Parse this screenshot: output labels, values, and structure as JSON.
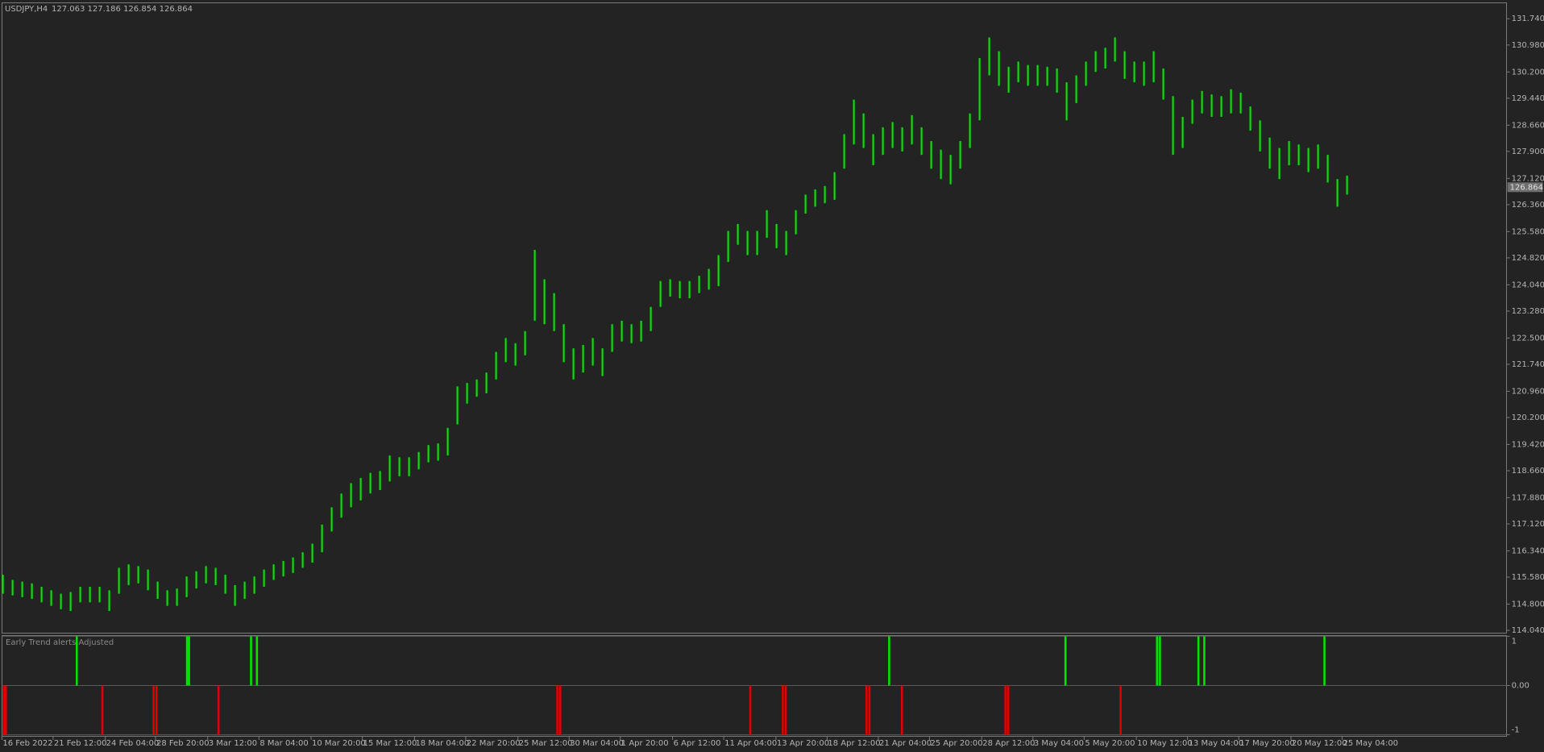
{
  "chart_data": [
    {
      "type": "rangebar",
      "title": "USDJPY,H4",
      "subtitle": "127.063 127.186 126.854 126.864",
      "color": "#00e400",
      "high": [
        115.65,
        115.5,
        115.45,
        115.4,
        115.3,
        115.2,
        115.1,
        115.15,
        115.3,
        115.3,
        115.3,
        115.2,
        115.85,
        115.95,
        115.9,
        115.8,
        115.45,
        115.2,
        115.25,
        115.6,
        115.75,
        115.9,
        115.85,
        115.65,
        115.35,
        115.45,
        115.6,
        115.8,
        115.95,
        116.05,
        116.15,
        116.3,
        116.55,
        117.1,
        117.6,
        118.0,
        118.3,
        118.45,
        118.6,
        118.65,
        119.1,
        119.05,
        119.05,
        119.2,
        119.4,
        119.45,
        119.9,
        121.1,
        121.2,
        121.3,
        121.5,
        122.1,
        122.5,
        122.35,
        122.7,
        125.05,
        124.2,
        123.8,
        122.9,
        122.2,
        122.3,
        122.5,
        122.2,
        122.9,
        123.0,
        122.9,
        123.0,
        123.4,
        124.15,
        124.2,
        124.15,
        124.15,
        124.3,
        124.5,
        124.9,
        125.6,
        125.8,
        125.6,
        125.6,
        126.2,
        125.8,
        125.6,
        126.2,
        126.65,
        126.8,
        126.9,
        127.3,
        128.4,
        129.4,
        129.0,
        128.4,
        128.6,
        128.75,
        128.6,
        128.95,
        128.6,
        128.2,
        127.95,
        127.8,
        128.2,
        129.0,
        130.6,
        131.2,
        130.8,
        130.35,
        130.5,
        130.4,
        130.4,
        130.35,
        130.3,
        129.9,
        130.1,
        130.5,
        130.8,
        130.9,
        131.2,
        130.8,
        130.5,
        130.5,
        130.8,
        130.3,
        129.5,
        128.9,
        129.4,
        129.65,
        129.55,
        129.5,
        129.7,
        129.6,
        129.2,
        128.8,
        128.3,
        128.0,
        128.2,
        128.1,
        128.0,
        128.1,
        127.8,
        127.1,
        127.2
      ],
      "low": [
        115.1,
        115.05,
        115.0,
        114.95,
        114.85,
        114.75,
        114.65,
        114.6,
        114.85,
        114.85,
        114.85,
        114.6,
        115.1,
        115.35,
        115.4,
        115.2,
        114.95,
        114.75,
        114.75,
        115.0,
        115.25,
        115.4,
        115.35,
        115.1,
        114.75,
        114.95,
        115.1,
        115.3,
        115.5,
        115.6,
        115.7,
        115.85,
        116.0,
        116.3,
        116.9,
        117.3,
        117.6,
        117.8,
        118.0,
        118.1,
        118.35,
        118.5,
        118.5,
        118.7,
        118.9,
        118.95,
        119.1,
        120.0,
        120.6,
        120.8,
        120.9,
        121.3,
        121.8,
        121.7,
        122.0,
        123.0,
        122.9,
        122.7,
        121.8,
        121.3,
        121.5,
        121.7,
        121.4,
        122.1,
        122.4,
        122.35,
        122.4,
        122.7,
        123.4,
        123.7,
        123.65,
        123.65,
        123.8,
        123.9,
        124.0,
        124.7,
        125.2,
        124.9,
        124.9,
        125.4,
        125.1,
        124.9,
        125.5,
        126.1,
        126.3,
        126.4,
        126.5,
        127.4,
        128.1,
        128.0,
        127.5,
        127.8,
        128.0,
        127.9,
        128.1,
        127.8,
        127.4,
        127.1,
        126.95,
        127.4,
        128.0,
        128.8,
        130.1,
        129.8,
        129.6,
        129.9,
        129.8,
        129.8,
        129.8,
        129.6,
        128.8,
        129.3,
        129.8,
        130.2,
        130.3,
        130.5,
        130.0,
        129.9,
        129.8,
        129.9,
        129.4,
        127.8,
        128.0,
        128.7,
        129.0,
        128.9,
        128.9,
        129.0,
        129.0,
        128.5,
        127.9,
        127.4,
        127.1,
        127.5,
        127.5,
        127.3,
        127.4,
        127.0,
        126.3,
        126.65
      ],
      "last_price": {
        "value": 126.864,
        "label": "126.864"
      },
      "xlim": [
        -0.1,
        155.5
      ],
      "xticks": [
        {
          "value": -0.1,
          "label": "16 Feb 2022"
        },
        {
          "value": 5.19,
          "label": "21 Feb 12:00"
        },
        {
          "value": 10.59,
          "label": "24 Feb 04:00"
        },
        {
          "value": 15.78,
          "label": "28 Feb 20:00"
        },
        {
          "value": 21.18,
          "label": "3 Mar 12:00"
        },
        {
          "value": 26.48,
          "label": "8 Mar 04:00"
        },
        {
          "value": 31.87,
          "label": "10 Mar 20:00"
        },
        {
          "value": 37.17,
          "label": "15 Mar 12:00"
        },
        {
          "value": 42.57,
          "label": "18 Mar 04:00"
        },
        {
          "value": 47.86,
          "label": "22 Mar 20:00"
        },
        {
          "value": 53.26,
          "label": "25 Mar 12:00"
        },
        {
          "value": 58.55,
          "label": "30 Mar 04:00"
        },
        {
          "value": 63.85,
          "label": "1 Apr 20:00"
        },
        {
          "value": 69.25,
          "label": "6 Apr 12:00"
        },
        {
          "value": 74.54,
          "label": "11 Apr 04:00"
        },
        {
          "value": 79.94,
          "label": "13 Apr 20:00"
        },
        {
          "value": 85.23,
          "label": "18 Apr 12:00"
        },
        {
          "value": 90.53,
          "label": "21 Apr 04:00"
        },
        {
          "value": 95.82,
          "label": "25 Apr 20:00"
        },
        {
          "value": 101.22,
          "label": "28 Apr 12:00"
        },
        {
          "value": 106.52,
          "label": "3 May 04:00"
        },
        {
          "value": 111.81,
          "label": "5 May 20:00"
        },
        {
          "value": 117.21,
          "label": "10 May 12:00"
        },
        {
          "value": 122.5,
          "label": "13 May 04:00"
        },
        {
          "value": 127.8,
          "label": "17 May 20:00"
        },
        {
          "value": 133.2,
          "label": "20 May 12:00"
        },
        {
          "value": 138.49,
          "label": "25 May 04:00"
        }
      ],
      "ylim": [
        113.955,
        132.196
      ],
      "yticks": [
        {
          "value": 114.04,
          "label": "114.040"
        },
        {
          "value": 114.8,
          "label": "114.800"
        },
        {
          "value": 115.58,
          "label": "115.580"
        },
        {
          "value": 116.34,
          "label": "116.340"
        },
        {
          "value": 117.12,
          "label": "117.120"
        },
        {
          "value": 117.88,
          "label": "117.880"
        },
        {
          "value": 118.66,
          "label": "118.660"
        },
        {
          "value": 119.42,
          "label": "119.420"
        },
        {
          "value": 120.2,
          "label": "120.200"
        },
        {
          "value": 120.96,
          "label": "120.960"
        },
        {
          "value": 121.74,
          "label": "121.740"
        },
        {
          "value": 122.5,
          "label": "122.500"
        },
        {
          "value": 123.28,
          "label": "123.280"
        },
        {
          "value": 124.04,
          "label": "124.040"
        },
        {
          "value": 124.82,
          "label": "124.820"
        },
        {
          "value": 125.58,
          "label": "125.580"
        },
        {
          "value": 126.36,
          "label": "126.360"
        },
        {
          "value": 127.12,
          "label": "127.120"
        },
        {
          "value": 127.9,
          "label": "127.900"
        },
        {
          "value": 128.66,
          "label": "128.660"
        },
        {
          "value": 129.44,
          "label": "129.440"
        },
        {
          "value": 130.2,
          "label": "130.200"
        },
        {
          "value": 130.98,
          "label": "130.980"
        },
        {
          "value": 131.74,
          "label": "131.740"
        }
      ],
      "grid": false
    },
    {
      "type": "signal",
      "title": "Early Trend alerts Adjusted",
      "up_color": "#00e400",
      "down_color": "#e00000",
      "x": [
        7.64,
        19.04,
        19.25,
        25.66,
        26.27,
        91.65,
        109.88,
        119.35,
        119.65,
        123.63,
        124.24,
        136.66,
        0.1,
        0.31,
        10.29,
        15.58,
        15.89,
        22.3,
        57.33,
        57.64,
        77.29,
        80.65,
        80.96,
        89.31,
        89.61,
        92.97,
        103.67,
        103.97,
        115.58
      ],
      "values": [
        1,
        1,
        1,
        1,
        1,
        1,
        1,
        1,
        1,
        1,
        1,
        1,
        -1,
        -1,
        -1,
        -1,
        -1,
        -1,
        -1,
        -1,
        -1,
        -1,
        -1,
        -1,
        -1,
        -1,
        -1,
        -1,
        -1
      ],
      "xlim": [
        -0.1,
        155.5
      ],
      "ylim": [
        -1,
        1
      ],
      "yticks": [
        1,
        {
          "value": 0,
          "label": "0.00"
        },
        -1
      ],
      "grid": true
    }
  ]
}
